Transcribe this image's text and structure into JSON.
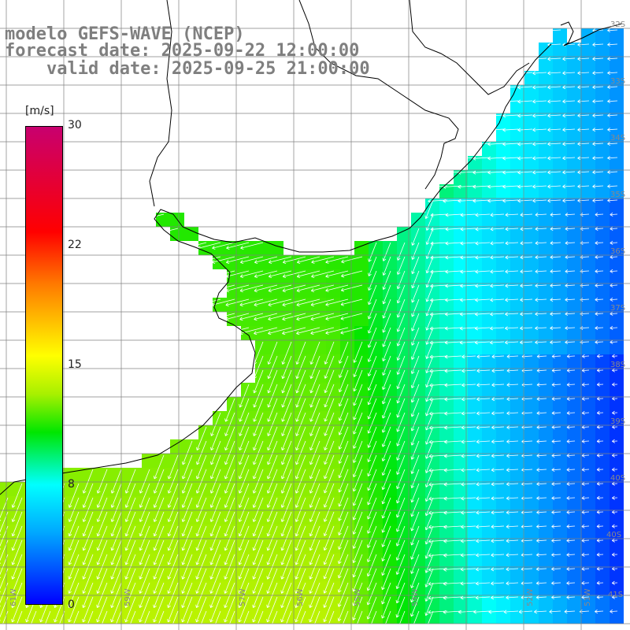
{
  "title": {
    "line1": "modelo GEFS-WAVE (NCEP)",
    "line2": "forecast date: 2025-09-22 12:00:00",
    "line3": "    valid date: 2025-09-25 21:00:00"
  },
  "colorbar": {
    "unit": "[m/s]",
    "ticks": [
      "30",
      "22",
      "15",
      "8",
      "0"
    ],
    "tick_values": [
      30,
      22,
      15,
      8,
      0
    ]
  },
  "lat_labels": [
    "32S",
    "33S",
    "34S",
    "35S",
    "36S",
    "37S",
    "38S",
    "39S",
    "40S",
    "41S"
  ],
  "lon_labels": [
    "61W",
    "60W",
    "59W",
    "58W",
    "57W",
    "56W",
    "55W",
    "54W",
    "53W",
    "52W",
    "51W"
  ],
  "colors": {
    "land": "#ffffff",
    "grid": "#808080",
    "coast": "#000000",
    "title": "#7f7f7f"
  },
  "map_data": {
    "variable": "wind speed",
    "units": "m/s",
    "wind_regimes": [
      {
        "area": "Rio de la Plata estuary",
        "speed_ms": 12,
        "direction": "from E/NE"
      },
      {
        "area": "Southwest shelf",
        "speed_ms": 12,
        "direction": "from N/NE"
      },
      {
        "area": "Central shelf",
        "speed_ms": 9,
        "direction": "from N/NE"
      },
      {
        "area": "Offshore southeast",
        "speed_ms": 3,
        "direction": "from E"
      }
    ]
  }
}
